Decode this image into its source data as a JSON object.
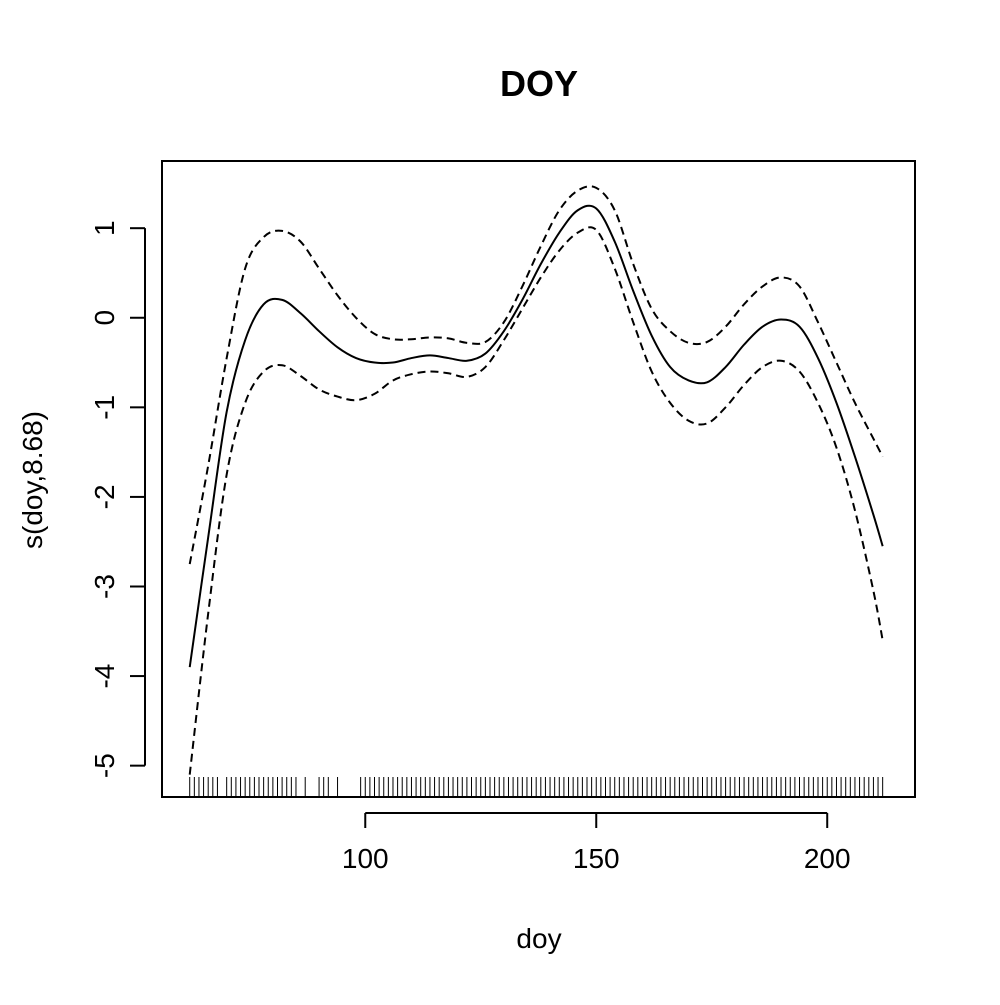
{
  "chart_data": {
    "type": "line",
    "title": "DOY",
    "xlabel": "doy",
    "ylabel": "s(doy,8.68)",
    "xlim": [
      56,
      219
    ],
    "ylim": [
      -5.35,
      1.75
    ],
    "xticks": [
      100,
      150,
      200
    ],
    "yticks": [
      -5,
      -4,
      -3,
      -2,
      -1,
      0,
      1
    ],
    "grid": false,
    "series": [
      {
        "style": "solid",
        "x": [
          62,
          66,
          70,
          74,
          78,
          82,
          86,
          90,
          94,
          98,
          102,
          106,
          110,
          114,
          118,
          122,
          126,
          130,
          134,
          138,
          142,
          146,
          150,
          154,
          158,
          162,
          166,
          170,
          174,
          178,
          182,
          186,
          190,
          194,
          198,
          202,
          206,
          210,
          212
        ],
        "y": [
          -3.9,
          -2.45,
          -1.05,
          -0.25,
          0.15,
          0.2,
          0.05,
          -0.15,
          -0.33,
          -0.45,
          -0.5,
          -0.5,
          -0.45,
          -0.42,
          -0.45,
          -0.48,
          -0.4,
          -0.15,
          0.2,
          0.6,
          0.95,
          1.2,
          1.22,
          0.85,
          0.3,
          -0.2,
          -0.55,
          -0.7,
          -0.72,
          -0.55,
          -0.3,
          -0.1,
          -0.02,
          -0.1,
          -0.45,
          -0.95,
          -1.55,
          -2.2,
          -2.55
        ]
      },
      {
        "style": "dashed",
        "x": [
          62,
          66,
          70,
          74,
          78,
          82,
          86,
          90,
          94,
          98,
          102,
          106,
          110,
          114,
          118,
          122,
          126,
          130,
          134,
          138,
          142,
          146,
          150,
          154,
          158,
          162,
          166,
          170,
          174,
          178,
          182,
          186,
          190,
          194,
          198,
          202,
          206,
          210,
          212
        ],
        "y": [
          -2.75,
          -1.65,
          -0.45,
          0.55,
          0.9,
          0.97,
          0.85,
          0.55,
          0.25,
          0.0,
          -0.18,
          -0.24,
          -0.24,
          -0.22,
          -0.23,
          -0.28,
          -0.27,
          -0.05,
          0.35,
          0.8,
          1.2,
          1.42,
          1.45,
          1.2,
          0.6,
          0.1,
          -0.15,
          -0.28,
          -0.27,
          -0.1,
          0.15,
          0.35,
          0.45,
          0.35,
          -0.05,
          -0.5,
          -0.95,
          -1.35,
          -1.55
        ]
      },
      {
        "style": "dashed",
        "x": [
          62,
          66,
          70,
          74,
          78,
          82,
          86,
          90,
          94,
          98,
          102,
          106,
          110,
          114,
          118,
          122,
          126,
          130,
          134,
          138,
          142,
          146,
          150,
          154,
          158,
          162,
          166,
          170,
          174,
          178,
          182,
          186,
          190,
          194,
          198,
          202,
          206,
          210,
          212
        ],
        "y": [
          -5.1,
          -3.3,
          -1.75,
          -0.95,
          -0.6,
          -0.53,
          -0.65,
          -0.8,
          -0.88,
          -0.92,
          -0.85,
          -0.7,
          -0.63,
          -0.6,
          -0.62,
          -0.66,
          -0.55,
          -0.25,
          0.1,
          0.45,
          0.75,
          0.95,
          0.98,
          0.55,
          -0.05,
          -0.6,
          -0.95,
          -1.15,
          -1.18,
          -1.0,
          -0.75,
          -0.55,
          -0.48,
          -0.6,
          -0.95,
          -1.45,
          -2.15,
          -3.05,
          -3.6
        ]
      }
    ],
    "rug": [
      62,
      63,
      64,
      65,
      66,
      67,
      68,
      70,
      71,
      72,
      73,
      74,
      75,
      76,
      77,
      78,
      79,
      80,
      81,
      82,
      83,
      84,
      85,
      87,
      90,
      91,
      92,
      94,
      99,
      100,
      101,
      102,
      103,
      104,
      105,
      106,
      107,
      108,
      109,
      110,
      111,
      112,
      113,
      114,
      115,
      116,
      117,
      118,
      119,
      120,
      121,
      122,
      123,
      124,
      125,
      126,
      127,
      128,
      129,
      130,
      131,
      132,
      133,
      134,
      135,
      136,
      137,
      138,
      139,
      140,
      141,
      142,
      143,
      144,
      145,
      146,
      147,
      148,
      149,
      150,
      151,
      152,
      153,
      154,
      155,
      156,
      157,
      158,
      159,
      160,
      161,
      162,
      163,
      164,
      165,
      166,
      167,
      168,
      169,
      170,
      171,
      172,
      173,
      174,
      175,
      176,
      177,
      178,
      179,
      180,
      181,
      182,
      183,
      184,
      185,
      186,
      187,
      188,
      189,
      190,
      191,
      192,
      193,
      194,
      195,
      196,
      197,
      198,
      199,
      200,
      201,
      202,
      203,
      204,
      205,
      206,
      207,
      208,
      209,
      210,
      211,
      212
    ]
  }
}
